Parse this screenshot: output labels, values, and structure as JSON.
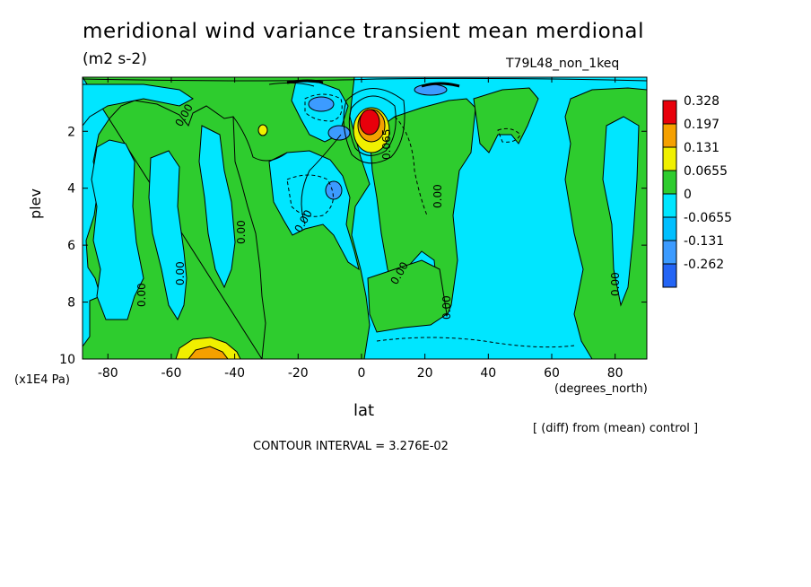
{
  "chart_data": {
    "type": "heatmap",
    "title": "meridional wind variance transient mean merdional",
    "units": "(m2 s-2)",
    "run_label": "T79L48_non_1keq",
    "xlabel": "lat",
    "x_unit": "(degrees_north)",
    "ylabel": "plev",
    "y_unit": "(x1E4 Pa)",
    "xlim": [
      -88,
      90
    ],
    "ylim": [
      10,
      0.1
    ],
    "x_ticks": [
      "-80",
      "-60",
      "-40",
      "-20",
      "0",
      "20",
      "40",
      "60",
      "80"
    ],
    "x_tick_values": [
      -80,
      -60,
      -40,
      -20,
      0,
      20,
      40,
      60,
      80
    ],
    "y_ticks": [
      "2",
      "4",
      "6",
      "8",
      "10"
    ],
    "y_tick_values": [
      2,
      4,
      6,
      8,
      10
    ],
    "legend": {
      "levels": [
        "0.328",
        "0.197",
        "0.131",
        "0.0655",
        "0",
        "-0.0655",
        "-0.131",
        "-0.262"
      ],
      "colors": [
        "#e8000b",
        "#f5a000",
        "#f0f000",
        "#2ecc2e",
        "#00e6ff",
        "#00bfff",
        "#3c9bff",
        "#2465f5"
      ]
    },
    "contour_labels": [
      "0.00",
      "0.00",
      "0.00",
      "0.00",
      "0.00",
      "0.00",
      "0.00",
      "0.00",
      "0.00",
      "0.065"
    ],
    "note": "[ (diff) from (mean) control ]",
    "contour_interval": "CONTOUR INTERVAL = 3.276E-02"
  },
  "colors": {
    "negative_fill": "#00e6ff",
    "zero_fill": "#2ecc2e",
    "strong_negative": "#3c9bff",
    "strongest_negative": "#2465f5",
    "positive_yellow": "#f0f000",
    "positive_orange": "#f5a000",
    "positive_red": "#e8000b"
  }
}
